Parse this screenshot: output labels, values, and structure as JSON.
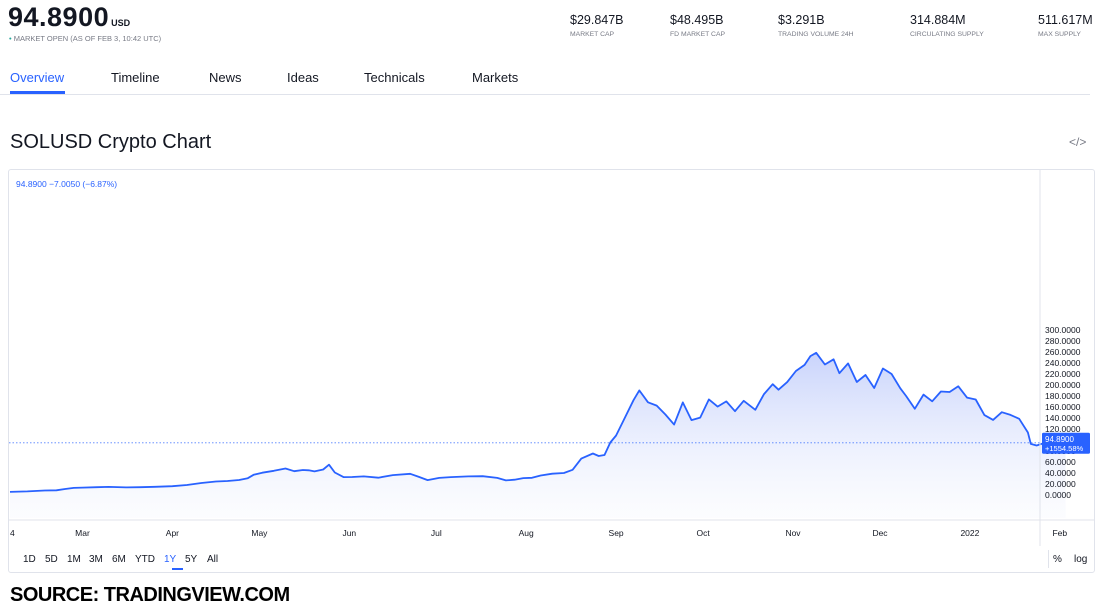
{
  "header": {
    "price": "94.8900",
    "currency": "USD",
    "status_dot": "•",
    "market_status": "MARKET OPEN",
    "as_of": "(AS OF FEB 3, 10:42 UTC)"
  },
  "stats": [
    {
      "value": "$29.847B",
      "label": "MARKET CAP"
    },
    {
      "value": "$48.495B",
      "label": "FD MARKET CAP"
    },
    {
      "value": "$3.291B",
      "label": "TRADING VOLUME 24H"
    },
    {
      "value": "314.884M",
      "label": "CIRCULATING SUPPLY"
    },
    {
      "value": "511.617M",
      "label": "MAX SUPPLY"
    }
  ],
  "tabs": [
    "Overview",
    "Timeline",
    "News",
    "Ideas",
    "Technicals",
    "Markets"
  ],
  "active_tab": "Overview",
  "section_title": "SOLUSD Crypto Chart",
  "embed_icon": "code-embed-icon",
  "embed_glyph": "</>",
  "legend_text": "94.8900  −7.0050 (−6.87%)",
  "range_buttons": [
    "1D",
    "5D",
    "1M",
    "3M",
    "6M",
    "YTD",
    "1Y",
    "5Y",
    "All"
  ],
  "active_range": "1Y",
  "scale_buttons": [
    "%",
    "log"
  ],
  "source": "SOURCE: TRADINGVIEW.COM",
  "colors": {
    "accent": "#2962ff",
    "line": "#2962ff",
    "area_top": "#b7c5fa",
    "status_green": "#26a69a",
    "text_muted": "#787b86"
  },
  "chart_data": {
    "type": "area",
    "series_name": "SOLUSD",
    "x_ticks": [
      "4",
      "Mar",
      "Apr",
      "May",
      "Jun",
      "Jul",
      "Aug",
      "Sep",
      "Oct",
      "Nov",
      "Dec",
      "2022",
      "Feb"
    ],
    "y_ticks": [
      "0.0000",
      "20.0000",
      "40.0000",
      "60.0000",
      "80.0000",
      "100.0000",
      "120.0000",
      "140.0000",
      "160.0000",
      "180.0000",
      "200.0000",
      "220.0000",
      "240.0000",
      "260.0000",
      "280.0000",
      "300.0000"
    ],
    "ylim": [
      -20,
      300
    ],
    "last_price_label": "94.8900",
    "last_change_label": "+1554.58%",
    "last_value": 94.89,
    "points": [
      [
        "2021-02-04",
        5.7
      ],
      [
        "2021-02-10",
        6.6
      ],
      [
        "2021-02-16",
        8.1
      ],
      [
        "2021-02-20",
        8.5
      ],
      [
        "2021-02-23",
        10.9
      ],
      [
        "2021-02-26",
        13.0
      ],
      [
        "2021-03-01",
        13.5
      ],
      [
        "2021-03-06",
        14.2
      ],
      [
        "2021-03-10",
        14.8
      ],
      [
        "2021-03-16",
        13.8
      ],
      [
        "2021-03-21",
        14.2
      ],
      [
        "2021-03-26",
        15.0
      ],
      [
        "2021-04-01",
        16.0
      ],
      [
        "2021-04-06",
        18.1
      ],
      [
        "2021-04-11",
        21.8
      ],
      [
        "2021-04-16",
        24.5
      ],
      [
        "2021-04-20",
        25.5
      ],
      [
        "2021-04-24",
        27.2
      ],
      [
        "2021-04-27",
        30.5
      ],
      [
        "2021-04-29",
        36.8
      ],
      [
        "2021-05-02",
        40.5
      ],
      [
        "2021-05-06",
        44.0
      ],
      [
        "2021-05-10",
        48.1
      ],
      [
        "2021-05-13",
        43.2
      ],
      [
        "2021-05-16",
        45.5
      ],
      [
        "2021-05-18",
        45.0
      ],
      [
        "2021-05-20",
        43.0
      ],
      [
        "2021-05-23",
        46.3
      ],
      [
        "2021-05-25",
        55.1
      ],
      [
        "2021-05-27",
        40.9
      ],
      [
        "2021-05-30",
        32.5
      ],
      [
        "2021-06-02",
        32.7
      ],
      [
        "2021-06-06",
        33.8
      ],
      [
        "2021-06-11",
        31.5
      ],
      [
        "2021-06-16",
        36.2
      ],
      [
        "2021-06-22",
        38.5
      ],
      [
        "2021-06-25",
        33.0
      ],
      [
        "2021-06-28",
        27.0
      ],
      [
        "2021-07-02",
        31.0
      ],
      [
        "2021-07-06",
        32.5
      ],
      [
        "2021-07-12",
        33.8
      ],
      [
        "2021-07-17",
        34.2
      ],
      [
        "2021-07-22",
        31.1
      ],
      [
        "2021-07-25",
        26.5
      ],
      [
        "2021-07-28",
        27.8
      ],
      [
        "2021-07-31",
        30.8
      ],
      [
        "2021-08-03",
        31.3
      ],
      [
        "2021-08-06",
        35.5
      ],
      [
        "2021-08-10",
        38.8
      ],
      [
        "2021-08-14",
        40.0
      ],
      [
        "2021-08-17",
        45.8
      ],
      [
        "2021-08-20",
        66.1
      ],
      [
        "2021-08-24",
        75.5
      ],
      [
        "2021-08-26",
        70.9
      ],
      [
        "2021-08-28",
        72.8
      ],
      [
        "2021-08-30",
        95.5
      ],
      [
        "2021-09-01",
        108.2
      ],
      [
        "2021-09-04",
        140.2
      ],
      [
        "2021-09-07",
        172.4
      ],
      [
        "2021-09-09",
        190.2
      ],
      [
        "2021-09-12",
        168.5
      ],
      [
        "2021-09-15",
        162.6
      ],
      [
        "2021-09-18",
        146.4
      ],
      [
        "2021-09-21",
        128.0
      ],
      [
        "2021-09-24",
        168.4
      ],
      [
        "2021-09-27",
        136.2
      ],
      [
        "2021-09-30",
        140.8
      ],
      [
        "2021-10-03",
        173.9
      ],
      [
        "2021-10-06",
        160.7
      ],
      [
        "2021-10-09",
        170.2
      ],
      [
        "2021-10-12",
        152.3
      ],
      [
        "2021-10-15",
        171.2
      ],
      [
        "2021-10-19",
        155.0
      ],
      [
        "2021-10-22",
        183.5
      ],
      [
        "2021-10-25",
        201.4
      ],
      [
        "2021-10-27",
        191.4
      ],
      [
        "2021-10-30",
        205.2
      ],
      [
        "2021-11-02",
        225.5
      ],
      [
        "2021-11-05",
        236.5
      ],
      [
        "2021-11-07",
        252.5
      ],
      [
        "2021-11-09",
        258.6
      ],
      [
        "2021-11-12",
        237.3
      ],
      [
        "2021-11-15",
        246.7
      ],
      [
        "2021-11-17",
        221.5
      ],
      [
        "2021-11-20",
        239.2
      ],
      [
        "2021-11-23",
        205.5
      ],
      [
        "2021-11-26",
        218.2
      ],
      [
        "2021-11-29",
        194.5
      ],
      [
        "2021-12-02",
        230.0
      ],
      [
        "2021-12-05",
        220.0
      ],
      [
        "2021-12-08",
        194.0
      ],
      [
        "2021-12-10",
        180.0
      ],
      [
        "2021-12-13",
        156.7
      ],
      [
        "2021-12-16",
        182.6
      ],
      [
        "2021-12-19",
        170.3
      ],
      [
        "2021-12-22",
        188.2
      ],
      [
        "2021-12-25",
        187.3
      ],
      [
        "2021-12-28",
        197.6
      ],
      [
        "2021-12-31",
        177.1
      ],
      [
        "2022-01-03",
        173.6
      ],
      [
        "2022-01-06",
        145.2
      ],
      [
        "2022-01-09",
        136.5
      ],
      [
        "2022-01-12",
        150.6
      ],
      [
        "2022-01-15",
        145.7
      ],
      [
        "2022-01-18",
        138.6
      ],
      [
        "2022-01-21",
        113.6
      ],
      [
        "2022-01-22",
        93.0
      ],
      [
        "2022-01-24",
        90.0
      ],
      [
        "2022-01-26",
        93.5
      ],
      [
        "2022-01-28",
        89.8
      ],
      [
        "2022-01-30",
        92.0
      ],
      [
        "2022-02-01",
        109.2
      ],
      [
        "2022-02-03",
        94.9
      ]
    ]
  }
}
